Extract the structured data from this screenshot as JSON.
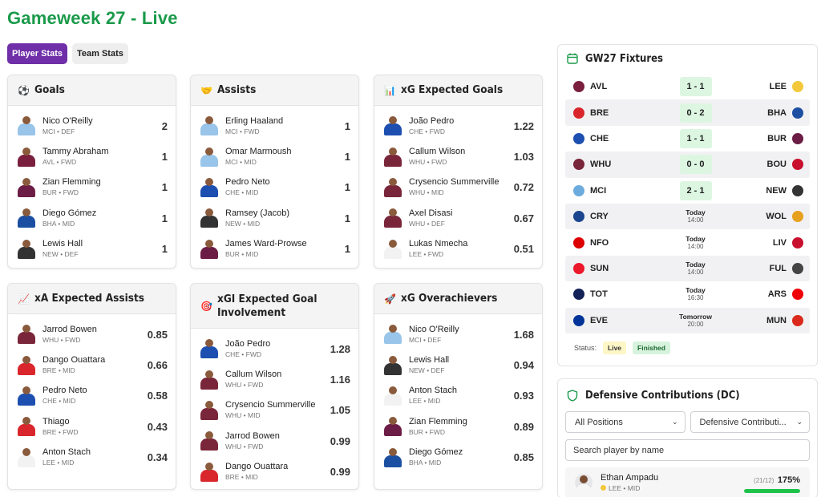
{
  "page_title": "Gameweek 27 - Live",
  "tabs": [
    {
      "label": "Player Stats",
      "active": true
    },
    {
      "label": "Team Stats",
      "active": false
    }
  ],
  "colors": {
    "title_green": "#1a9a4a",
    "tab_active": "#6f2fa8",
    "score_bg": "#dcf6e2",
    "bar_green": "#1fc34a"
  },
  "cards": [
    {
      "key": "goals",
      "icon": "⚽",
      "icon_name": "soccer-ball-icon",
      "title": "Goals",
      "rows": [
        {
          "name": "Nico O'Reilly",
          "meta": "MCI • DEF",
          "value": "2",
          "shirt": "#98c5e9"
        },
        {
          "name": "Tammy Abraham",
          "meta": "AVL • FWD",
          "value": "1",
          "shirt": "#7a1f3d"
        },
        {
          "name": "Zian Flemming",
          "meta": "BUR • FWD",
          "value": "1",
          "shirt": "#6c1d45"
        },
        {
          "name": "Diego Gómez",
          "meta": "BHA • MID",
          "value": "1",
          "shirt": "#1c4fa1"
        },
        {
          "name": "Lewis Hall",
          "meta": "NEW • DEF",
          "value": "1",
          "shirt": "#333333"
        }
      ]
    },
    {
      "key": "assists",
      "icon": "🤝",
      "icon_name": "handshake-icon",
      "title": "Assists",
      "rows": [
        {
          "name": "Erling Haaland",
          "meta": "MCI • FWD",
          "value": "1",
          "shirt": "#98c5e9"
        },
        {
          "name": "Omar Marmoush",
          "meta": "MCI • MID",
          "value": "1",
          "shirt": "#98c5e9"
        },
        {
          "name": "Pedro Neto",
          "meta": "CHE • MID",
          "value": "1",
          "shirt": "#1d4fb0"
        },
        {
          "name": "Ramsey (Jacob)",
          "meta": "NEW • MID",
          "value": "1",
          "shirt": "#333333"
        },
        {
          "name": "James Ward-Prowse",
          "meta": "BUR • MID",
          "value": "1",
          "shirt": "#6c1d45"
        }
      ]
    },
    {
      "key": "xg",
      "icon": "📊",
      "icon_name": "bar-chart-icon",
      "title": "xG Expected Goals",
      "rows": [
        {
          "name": "João Pedro",
          "meta": "CHE • FWD",
          "value": "1.22",
          "shirt": "#1d4fb0"
        },
        {
          "name": "Callum Wilson",
          "meta": "WHU • FWD",
          "value": "1.03",
          "shirt": "#7a263a"
        },
        {
          "name": "Crysencio Summerville",
          "meta": "WHU • MID",
          "value": "0.72",
          "shirt": "#7a263a"
        },
        {
          "name": "Axel Disasi",
          "meta": "WHU • DEF",
          "value": "0.67",
          "shirt": "#7a263a"
        },
        {
          "name": "Lukas Nmecha",
          "meta": "LEE • FWD",
          "value": "0.51",
          "shirt": "#f2f2f2"
        }
      ]
    },
    {
      "key": "xa",
      "icon": "📈",
      "icon_name": "trend-chart-icon",
      "title": "xA Expected Assists",
      "rows": [
        {
          "name": "Jarrod Bowen",
          "meta": "WHU • FWD",
          "value": "0.85",
          "shirt": "#7a263a"
        },
        {
          "name": "Dango Ouattara",
          "meta": "BRE • MID",
          "value": "0.66",
          "shirt": "#d9262c"
        },
        {
          "name": "Pedro Neto",
          "meta": "CHE • MID",
          "value": "0.58",
          "shirt": "#1d4fb0"
        },
        {
          "name": "Thiago",
          "meta": "BRE • FWD",
          "value": "0.43",
          "shirt": "#d9262c"
        },
        {
          "name": "Anton Stach",
          "meta": "LEE • MID",
          "value": "0.34",
          "shirt": "#f2f2f2"
        }
      ]
    },
    {
      "key": "xgi",
      "icon": "🎯",
      "icon_name": "target-icon",
      "title": "xGI Expected Goal Involvement",
      "rows": [
        {
          "name": "João Pedro",
          "meta": "CHE • FWD",
          "value": "1.28",
          "shirt": "#1d4fb0"
        },
        {
          "name": "Callum Wilson",
          "meta": "WHU • FWD",
          "value": "1.16",
          "shirt": "#7a263a"
        },
        {
          "name": "Crysencio Summerville",
          "meta": "WHU • MID",
          "value": "1.05",
          "shirt": "#7a263a"
        },
        {
          "name": "Jarrod Bowen",
          "meta": "WHU • FWD",
          "value": "0.99",
          "shirt": "#7a263a"
        },
        {
          "name": "Dango Ouattara",
          "meta": "BRE • MID",
          "value": "0.99",
          "shirt": "#d9262c"
        }
      ]
    },
    {
      "key": "overachievers",
      "icon": "🚀",
      "icon_name": "rocket-icon",
      "title": "xG Overachievers",
      "rows": [
        {
          "name": "Nico O'Reilly",
          "meta": "MCI • DEF",
          "value": "1.68",
          "shirt": "#98c5e9"
        },
        {
          "name": "Lewis Hall",
          "meta": "NEW • DEF",
          "value": "0.94",
          "shirt": "#333333"
        },
        {
          "name": "Anton Stach",
          "meta": "LEE • MID",
          "value": "0.93",
          "shirt": "#f2f2f2"
        },
        {
          "name": "Zian Flemming",
          "meta": "BUR • FWD",
          "value": "0.89",
          "shirt": "#6c1d45"
        },
        {
          "name": "Diego Gómez",
          "meta": "BHA • MID",
          "value": "0.85",
          "shirt": "#1c4fa1"
        }
      ]
    }
  ],
  "fixtures": {
    "icon_name": "calendar-icon",
    "title": "GW27 Fixtures",
    "rows": [
      {
        "home": "AVL",
        "home_color": "#7a1f3d",
        "score": "1 - 1",
        "day": "",
        "time": "",
        "away": "LEE",
        "away_color": "#f3c93b"
      },
      {
        "home": "BRE",
        "home_color": "#d9262c",
        "score": "0 - 2",
        "day": "",
        "time": "",
        "away": "BHA",
        "away_color": "#1c4fa1"
      },
      {
        "home": "CHE",
        "home_color": "#1d4fb0",
        "score": "1 - 1",
        "day": "",
        "time": "",
        "away": "BUR",
        "away_color": "#6c1d45"
      },
      {
        "home": "WHU",
        "home_color": "#7a263a",
        "score": "0 - 0",
        "day": "",
        "time": "",
        "away": "BOU",
        "away_color": "#c8102e"
      },
      {
        "home": "MCI",
        "home_color": "#6cabdd",
        "score": "2 - 1",
        "day": "",
        "time": "",
        "away": "NEW",
        "away_color": "#333333"
      },
      {
        "home": "CRY",
        "home_color": "#1b458f",
        "score": "",
        "day": "Today",
        "time": "14:00",
        "away": "WOL",
        "away_color": "#e6a11f"
      },
      {
        "home": "NFO",
        "home_color": "#dd0000",
        "score": "",
        "day": "Today",
        "time": "14:00",
        "away": "LIV",
        "away_color": "#c8102e"
      },
      {
        "home": "SUN",
        "home_color": "#eb172b",
        "score": "",
        "day": "Today",
        "time": "14:00",
        "away": "FUL",
        "away_color": "#444444"
      },
      {
        "home": "TOT",
        "home_color": "#132257",
        "score": "",
        "day": "Today",
        "time": "16:30",
        "away": "ARS",
        "away_color": "#ef0107"
      },
      {
        "home": "EVE",
        "home_color": "#003399",
        "score": "",
        "day": "Tomorrow",
        "time": "20:00",
        "away": "MUN",
        "away_color": "#da291c"
      }
    ],
    "status_label": "Status:",
    "live_label": "Live",
    "finished_label": "Finished"
  },
  "defensive": {
    "icon_name": "shield-icon",
    "title": "Defensive Contributions (DC)",
    "position_select": "All Positions",
    "metric_select": "Defensive Contributi...",
    "search_placeholder": "Search player by name",
    "top_player": {
      "name": "Ethan Ampadu",
      "meta": "LEE • MID",
      "fraction": "(21/12)",
      "percent": "175%",
      "progress": 1.0
    }
  }
}
